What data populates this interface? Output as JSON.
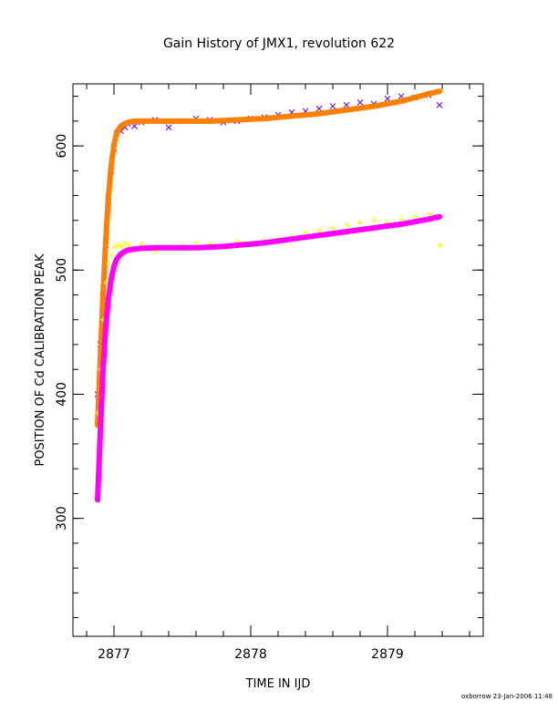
{
  "footer": "oxborrow 23-Jan-2006 11:48",
  "colors": {
    "scatter_upper": "#7a1fe0",
    "fit_upper": "#ff7f00",
    "scatter_lower": "#ffff00",
    "fit_lower": "#ff00ff"
  },
  "chart_data": {
    "type": "scatter",
    "title": "Gain History of JMX1, revolution 622",
    "xlabel": "TIME IN IJD",
    "ylabel": "POSITION OF Cd CALIBRATION PEAK",
    "xlim": [
      2876.7,
      2879.7
    ],
    "ylim": [
      205,
      650
    ],
    "xticks": [
      2877,
      2878,
      2879
    ],
    "yticks": [
      300,
      400,
      500,
      600
    ],
    "grid": false,
    "series": [
      {
        "marker": "x",
        "color": "#7a1fe0",
        "x": [
          2876.88,
          2876.9,
          2876.92,
          2876.94,
          2876.96,
          2876.98,
          2877.0,
          2877.02,
          2877.05,
          2877.08,
          2877.1,
          2877.15,
          2877.2,
          2877.3,
          2877.4,
          2877.5,
          2877.6,
          2877.7,
          2877.8,
          2877.9,
          2878.0,
          2878.1,
          2878.2,
          2878.3,
          2878.4,
          2878.5,
          2878.6,
          2878.7,
          2878.8,
          2878.9,
          2879.0,
          2879.1,
          2879.2,
          2879.3,
          2879.38
        ],
        "y": [
          400,
          440,
          480,
          520,
          555,
          580,
          598,
          610,
          612,
          615,
          618,
          616,
          619,
          621,
          615,
          620,
          622,
          621,
          619,
          620,
          622,
          623,
          625,
          627,
          628,
          630,
          632,
          633,
          635,
          634,
          638,
          640,
          639,
          641,
          633
        ]
      },
      {
        "marker": "-",
        "color": "#ff7f00",
        "x": [
          2876.88,
          2876.9,
          2876.92,
          2876.94,
          2876.96,
          2876.98,
          2877.0,
          2877.02,
          2877.05,
          2877.08,
          2877.1,
          2877.15,
          2877.2,
          2877.3,
          2877.4,
          2877.5,
          2877.6,
          2877.7,
          2877.8,
          2877.9,
          2878.0,
          2878.1,
          2878.2,
          2878.3,
          2878.4,
          2878.5,
          2878.6,
          2878.7,
          2878.8,
          2878.9,
          2879.0,
          2879.1,
          2879.2,
          2879.3,
          2879.38
        ],
        "y": [
          375,
          430,
          480,
          525,
          560,
          585,
          601,
          611,
          616,
          618,
          619,
          620,
          620,
          620,
          620,
          620,
          620,
          620,
          620.5,
          621,
          621.5,
          622,
          623,
          624,
          625,
          626,
          627.5,
          629,
          630.5,
          632,
          634,
          636,
          639,
          642,
          644
        ]
      },
      {
        "marker": "+",
        "color": "#ffff00",
        "x": [
          2876.88,
          2876.9,
          2876.92,
          2876.94,
          2876.96,
          2876.98,
          2877.0,
          2877.02,
          2877.05,
          2877.08,
          2877.1,
          2877.15,
          2877.2,
          2877.3,
          2877.4,
          2877.5,
          2877.6,
          2877.7,
          2877.8,
          2877.9,
          2878.0,
          2878.1,
          2878.2,
          2878.3,
          2878.4,
          2878.5,
          2878.6,
          2878.7,
          2878.8,
          2878.9,
          2879.0,
          2879.1,
          2879.2,
          2879.3,
          2879.38
        ],
        "y": [
          385,
          420,
          460,
          490,
          505,
          512,
          518,
          520,
          519,
          522,
          520,
          518,
          521,
          515,
          519,
          520,
          522,
          521,
          518,
          523,
          522,
          524,
          525,
          527,
          530,
          532,
          534,
          536,
          538,
          540,
          538,
          541,
          543,
          545,
          520
        ]
      },
      {
        "marker": "-",
        "color": "#ff00ff",
        "x": [
          2876.88,
          2876.9,
          2876.92,
          2876.94,
          2876.96,
          2876.98,
          2877.0,
          2877.02,
          2877.05,
          2877.08,
          2877.1,
          2877.15,
          2877.2,
          2877.3,
          2877.4,
          2877.5,
          2877.6,
          2877.7,
          2877.8,
          2877.9,
          2878.0,
          2878.1,
          2878.2,
          2878.3,
          2878.4,
          2878.5,
          2878.6,
          2878.7,
          2878.8,
          2878.9,
          2879.0,
          2879.1,
          2879.2,
          2879.3,
          2879.38
        ],
        "y": [
          315,
          370,
          420,
          455,
          478,
          493,
          503,
          509,
          513,
          515,
          516,
          517,
          517.5,
          518,
          518,
          518,
          518,
          518.5,
          519,
          520,
          521,
          522,
          523.5,
          525,
          526.5,
          528,
          529.5,
          531,
          532.5,
          534,
          535.5,
          537,
          539,
          541,
          543
        ]
      }
    ]
  }
}
